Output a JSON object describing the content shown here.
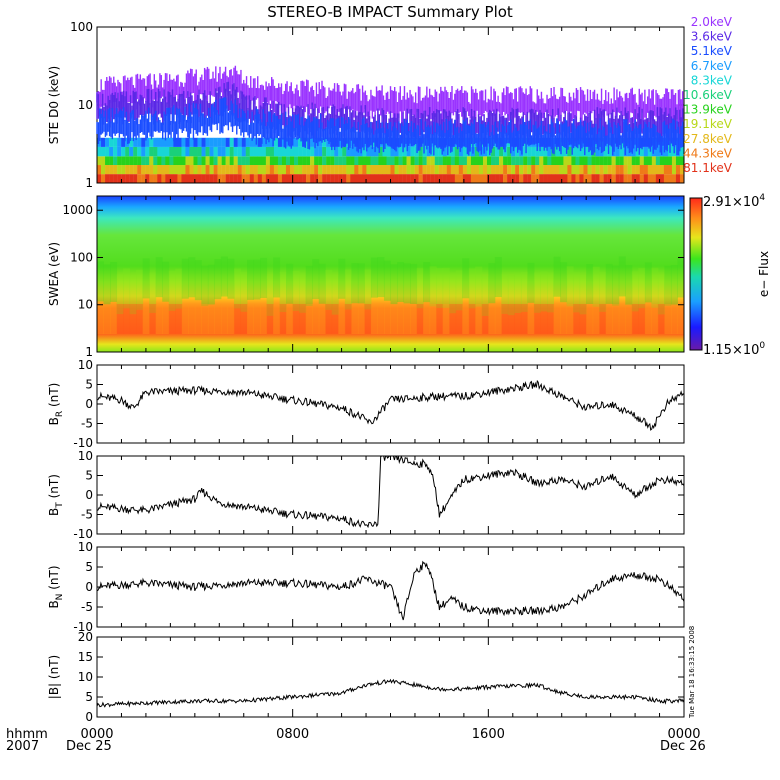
{
  "title": "STEREO-B IMPACT Summary Plot",
  "colors": {
    "frame": "#000000",
    "line": "#000000"
  },
  "energy_legend": [
    {
      "label": "2.0keV",
      "color": "#9a33ff"
    },
    {
      "label": "3.6keV",
      "color": "#5a28e6"
    },
    {
      "label": "5.1keV",
      "color": "#1a4dff"
    },
    {
      "label": "6.7keV",
      "color": "#1a9cff"
    },
    {
      "label": "8.3keV",
      "color": "#18d6d6"
    },
    {
      "label": "10.6keV",
      "color": "#1ad07a"
    },
    {
      "label": "13.9keV",
      "color": "#27d21c"
    },
    {
      "label": "19.1keV",
      "color": "#b8d81a"
    },
    {
      "label": "27.8keV",
      "color": "#e3b81a"
    },
    {
      "label": "44.3keV",
      "color": "#ef7a18"
    },
    {
      "label": "81.1keV",
      "color": "#e2321a"
    }
  ],
  "colorbar": {
    "max_label": "2.91×10",
    "max_exp": "4",
    "min_label": "1.15×10",
    "min_exp": "0",
    "title": "e− Flux"
  },
  "x_axis": {
    "ticks": [
      "0000",
      "0800",
      "1600",
      "0000"
    ],
    "dates": [
      "Dec 25",
      "Dec 26"
    ],
    "row_label_1": "hhmm",
    "row_label_2": "2007"
  },
  "timestamp": "Tue Mar 18 16:33:15 2008",
  "chart_data": [
    {
      "type": "line",
      "panel": "ste",
      "ylabel": "STE D0 (keV)",
      "yscale": "log",
      "ylim": [
        1,
        100
      ],
      "yticks": [
        "1",
        "10",
        "100"
      ],
      "x_hours": [
        0,
        2,
        4,
        5,
        5.5,
        6,
        8,
        10,
        12,
        16,
        20,
        24
      ],
      "series": [
        {
          "name": "2.0keV",
          "values": [
            17,
            19,
            22,
            24,
            27,
            20,
            16,
            15,
            13,
            13,
            13,
            12
          ]
        },
        {
          "name": "3.6keV",
          "values": [
            11,
            12,
            12,
            13,
            16,
            11,
            8,
            8,
            7,
            7,
            7,
            7
          ]
        },
        {
          "name": "5.1keV",
          "values": [
            7,
            7,
            8,
            9,
            10,
            7,
            6,
            5.5,
            5,
            5,
            5,
            5
          ]
        }
      ]
    },
    {
      "type": "heatmap",
      "panel": "swea",
      "ylabel": "SWEA (eV)",
      "yscale": "log",
      "ylim": [
        1,
        2000
      ],
      "yticks": [
        "1",
        "10",
        "100",
        "1000"
      ],
      "zrange": [
        1.15,
        29100
      ]
    },
    {
      "type": "line",
      "panel": "br",
      "ylabel": "B",
      "ylabel_sub": "R",
      "ylabel_unit": "(nT)",
      "ylim": [
        -10,
        10
      ],
      "yticks": [
        "-10",
        "-5",
        "0",
        "5",
        "10"
      ],
      "x_hours": [
        0,
        1,
        1.5,
        2,
        4,
        6,
        8,
        10,
        10.7,
        11.2,
        12,
        14,
        15,
        16,
        18,
        19,
        20,
        21,
        22,
        22.7,
        23.3,
        24
      ],
      "values": [
        2,
        1,
        -1,
        3,
        3.5,
        3,
        1,
        -1,
        -3,
        -5,
        1,
        2,
        2,
        3,
        5,
        2,
        -1,
        0,
        -3,
        -6,
        0,
        3
      ]
    },
    {
      "type": "line",
      "panel": "bt",
      "ylabel": "B",
      "ylabel_sub": "T",
      "ylabel_unit": "(nT)",
      "ylim": [
        -10,
        10
      ],
      "yticks": [
        "-10",
        "-5",
        "0",
        "5",
        "10"
      ],
      "x_hours": [
        0,
        2,
        4,
        4.3,
        5,
        6,
        8,
        10,
        11,
        11.5,
        11.6,
        12.5,
        13,
        13.5,
        13.8,
        14,
        15,
        16,
        17,
        18,
        19,
        20,
        21,
        22,
        23,
        24
      ],
      "values": [
        -3,
        -4,
        -1,
        1,
        -2,
        -3,
        -5,
        -6,
        -8,
        -7,
        10,
        9,
        8,
        8,
        3,
        -5,
        4,
        5,
        6,
        3,
        4,
        2,
        5,
        0,
        4,
        3
      ]
    },
    {
      "type": "line",
      "panel": "bn",
      "ylabel": "B",
      "ylabel_sub": "N",
      "ylabel_unit": "(nT)",
      "ylim": [
        -10,
        10
      ],
      "yticks": [
        "-10",
        "-5",
        "0",
        "5",
        "10"
      ],
      "x_hours": [
        0,
        2,
        4,
        6,
        8,
        10,
        11,
        12,
        12.5,
        13,
        13.5,
        14,
        14.5,
        15,
        16,
        18,
        19,
        20,
        21,
        22,
        23,
        24
      ],
      "values": [
        0,
        1,
        0,
        1,
        1,
        0,
        2,
        0,
        -8,
        4,
        6,
        -5,
        -3,
        -5,
        -6,
        -6,
        -5,
        -2,
        2,
        3,
        2,
        -3
      ]
    },
    {
      "type": "line",
      "panel": "bmag",
      "ylabel": "|B| (nT)",
      "ylim": [
        0,
        20
      ],
      "yticks": [
        "0",
        "5",
        "10",
        "15",
        "20"
      ],
      "x_hours": [
        0,
        2,
        4,
        6,
        8,
        10,
        11,
        12,
        13,
        14,
        15,
        16,
        18,
        19,
        20,
        22,
        23,
        24
      ],
      "values": [
        3,
        3.5,
        4,
        4,
        5,
        6,
        8,
        9,
        8,
        7,
        7,
        7.5,
        8,
        6,
        5,
        5,
        4,
        4
      ]
    }
  ]
}
